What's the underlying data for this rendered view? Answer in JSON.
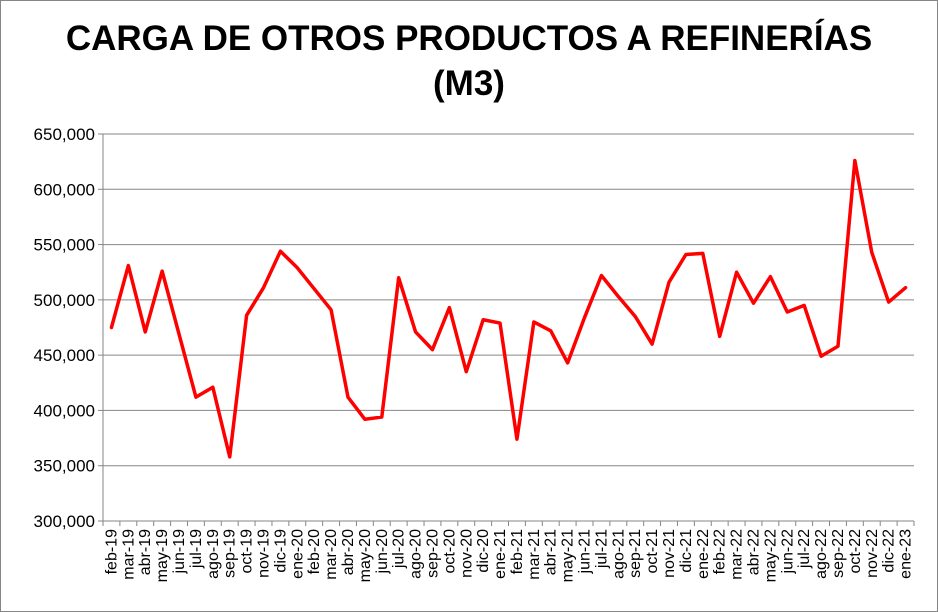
{
  "chart_data": {
    "type": "line",
    "title_line1": "CARGA DE OTROS PRODUCTOS A REFINERÍAS",
    "title_line2": "(M3)",
    "xlabel": "",
    "ylabel": "",
    "ylim": [
      300000,
      650000
    ],
    "yticks": [
      300000,
      350000,
      400000,
      450000,
      500000,
      550000,
      600000,
      650000
    ],
    "ytick_labels": [
      "300,000",
      "350,000",
      "400,000",
      "450,000",
      "500,000",
      "550,000",
      "600,000",
      "650,000"
    ],
    "grid": true,
    "legend": "none",
    "line_color": "#ff0000",
    "categories": [
      "feb-19",
      "mar-19",
      "abr-19",
      "may-19",
      "jun-19",
      "jul-19",
      "ago-19",
      "sep-19",
      "oct-19",
      "nov-19",
      "dic-19",
      "ene-20",
      "feb-20",
      "mar-20",
      "abr-20",
      "may-20",
      "jun-20",
      "jul-20",
      "ago-20",
      "sep-20",
      "oct-20",
      "nov-20",
      "dic-20",
      "ene-21",
      "feb-21",
      "mar-21",
      "abr-21",
      "may-21",
      "jun-21",
      "jul-21",
      "ago-21",
      "sep-21",
      "oct-21",
      "nov-21",
      "dic-21",
      "ene-22",
      "feb-22",
      "mar-22",
      "abr-22",
      "may-22",
      "jun-22",
      "jul-22",
      "ago-22",
      "sep-22",
      "oct-22",
      "nov-22",
      "dic-22",
      "ene-23"
    ],
    "series": [
      {
        "values": [
          475000,
          531000,
          471000,
          526000,
          469000,
          412000,
          421000,
          358000,
          486000,
          511000,
          544000,
          529000,
          510000,
          491000,
          412000,
          392000,
          394000,
          520000,
          471000,
          455000,
          493000,
          435000,
          482000,
          479000,
          374000,
          480000,
          472000,
          443000,
          484000,
          522000,
          503000,
          485000,
          460000,
          516000,
          541000,
          542000,
          467000,
          525000,
          497000,
          521000,
          489000,
          495000,
          449000,
          458000,
          626000,
          543000,
          498000,
          511000
        ]
      }
    ]
  }
}
